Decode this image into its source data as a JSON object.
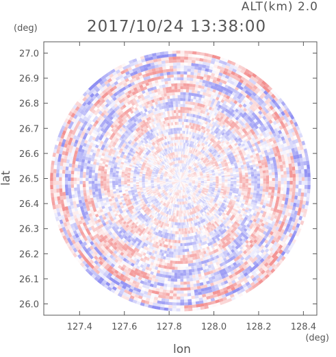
{
  "chart_data": {
    "type": "heatmap",
    "subtype": "radar-ppi",
    "title": "2017/10/24 13:38:00",
    "subtitle": "ALT(km) 2.0",
    "xlabel": "lon",
    "ylabel": "lat",
    "x_unit": "(deg)",
    "y_unit": "(deg)",
    "xlim": [
      127.24,
      128.46
    ],
    "ylim": [
      25.955,
      27.045
    ],
    "x_ticks": [
      127.4,
      127.6,
      127.8,
      128.0,
      128.2,
      128.4
    ],
    "x_tick_labels": [
      "127.4",
      "127.6",
      "127.8",
      "128.0",
      "128.2",
      "128.4"
    ],
    "y_ticks": [
      26.0,
      26.1,
      26.2,
      26.3,
      26.4,
      26.5,
      26.6,
      26.7,
      26.8,
      26.9,
      27.0
    ],
    "y_tick_labels": [
      "26.0",
      "26.1",
      "26.2",
      "26.3",
      "26.4",
      "26.5",
      "26.6",
      "26.7",
      "26.8",
      "26.9",
      "27.0"
    ],
    "center": {
      "lon": 127.85,
      "lat": 26.49
    },
    "range_deg": {
      "lon": 0.59,
      "lat": 0.52
    },
    "colormap": {
      "negative": "#8c8cf2",
      "zero": "#ffffff",
      "positive": "#f28c8c"
    },
    "grid": false
  }
}
